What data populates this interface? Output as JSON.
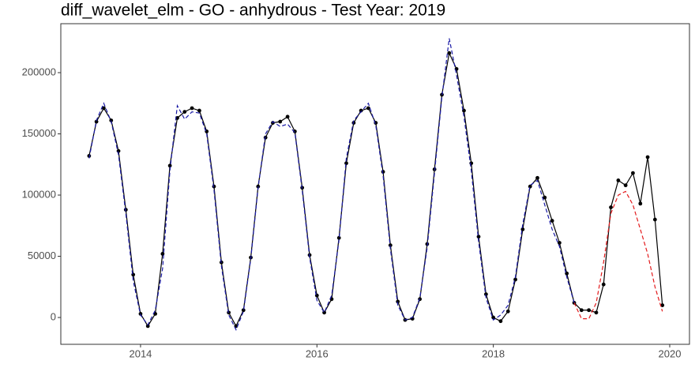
{
  "chart_data": {
    "type": "line",
    "title": "diff_wavelet_elm - GO - anhydrous - Test Year: 2019",
    "x": [
      2013.417,
      2013.5,
      2013.583,
      2013.667,
      2013.75,
      2013.833,
      2013.917,
      2014.0,
      2014.083,
      2014.167,
      2014.25,
      2014.333,
      2014.417,
      2014.5,
      2014.583,
      2014.667,
      2014.75,
      2014.833,
      2014.917,
      2015.0,
      2015.083,
      2015.167,
      2015.25,
      2015.333,
      2015.417,
      2015.5,
      2015.583,
      2015.667,
      2015.75,
      2015.833,
      2015.917,
      2016.0,
      2016.083,
      2016.167,
      2016.25,
      2016.333,
      2016.417,
      2016.5,
      2016.583,
      2016.667,
      2016.75,
      2016.833,
      2016.917,
      2017.0,
      2017.083,
      2017.167,
      2017.25,
      2017.333,
      2017.417,
      2017.5,
      2017.583,
      2017.667,
      2017.75,
      2017.833,
      2017.917,
      2018.0,
      2018.083,
      2018.167,
      2018.25,
      2018.333,
      2018.417,
      2018.5,
      2018.583,
      2018.667,
      2018.75,
      2018.833,
      2018.917,
      2019.0,
      2019.083,
      2019.167,
      2019.25,
      2019.333,
      2019.417,
      2019.5,
      2019.583,
      2019.667,
      2019.75,
      2019.833,
      2019.917
    ],
    "series": [
      {
        "color": "#000000",
        "line_style": "solid",
        "markers": true,
        "values": [
          132000,
          160000,
          171000,
          161000,
          136000,
          88000,
          35000,
          3000,
          -7000,
          3000,
          52000,
          124000,
          163000,
          168000,
          171000,
          169000,
          152000,
          107000,
          45000,
          4000,
          -7000,
          6000,
          49000,
          107000,
          147000,
          159000,
          160000,
          164000,
          152000,
          106000,
          51000,
          18000,
          4000,
          15000,
          65000,
          126000,
          159000,
          169000,
          171000,
          159000,
          119000,
          59000,
          13000,
          -2000,
          -1000,
          15000,
          60000,
          121000,
          182000,
          216000,
          203000,
          169000,
          126000,
          66000,
          19000,
          0,
          -3000,
          5000,
          31000,
          72000,
          107000,
          114000,
          98000,
          79000,
          61000,
          36000,
          12000,
          6000,
          6000,
          4000,
          27000,
          90000,
          112000,
          108000,
          118000,
          93000,
          131000,
          80000,
          10000
        ]
      },
      {
        "color": "#1a1aa6",
        "line_style": "dashed",
        "markers": false,
        "values": [
          130000,
          161000,
          175000,
          160000,
          133000,
          85000,
          30000,
          2000,
          -6000,
          6000,
          40000,
          120000,
          173000,
          162000,
          168000,
          167000,
          150000,
          104000,
          42000,
          2000,
          -10000,
          5000,
          48000,
          106000,
          150000,
          160000,
          156000,
          158000,
          151000,
          104000,
          49000,
          14000,
          4000,
          18000,
          63000,
          130000,
          161000,
          168000,
          175000,
          157000,
          116000,
          56000,
          10000,
          -2000,
          0,
          16000,
          57000,
          118000,
          180000,
          228000,
          198000,
          164000,
          120000,
          62000,
          16000,
          -2000,
          2000,
          10000,
          33000,
          76000,
          108000,
          112000,
          92000,
          72000,
          58000,
          33000,
          12000,
          null,
          null,
          null,
          null,
          null,
          null,
          null,
          null,
          null,
          null,
          null,
          null
        ]
      },
      {
        "color": "#e31a1c",
        "line_style": "dashed",
        "markers": false,
        "values": [
          null,
          null,
          null,
          null,
          null,
          null,
          null,
          null,
          null,
          null,
          null,
          null,
          null,
          null,
          null,
          null,
          null,
          null,
          null,
          null,
          null,
          null,
          null,
          null,
          null,
          null,
          null,
          null,
          null,
          null,
          null,
          null,
          null,
          null,
          null,
          null,
          null,
          null,
          null,
          null,
          null,
          null,
          null,
          null,
          null,
          null,
          null,
          null,
          null,
          null,
          null,
          null,
          null,
          null,
          null,
          null,
          null,
          null,
          null,
          null,
          null,
          null,
          null,
          null,
          null,
          null,
          12000,
          -1000,
          -1000,
          12000,
          45000,
          85000,
          100000,
          103000,
          92000,
          72000,
          52000,
          25000,
          5000
        ]
      }
    ],
    "xlim": [
      2013.096,
      2020.224
    ],
    "xticks": [
      2014,
      2016,
      2018,
      2020
    ],
    "ylim": [
      -21900,
      240000
    ],
    "yticks": [
      0,
      50000,
      100000,
      150000,
      200000
    ],
    "grid": false
  }
}
